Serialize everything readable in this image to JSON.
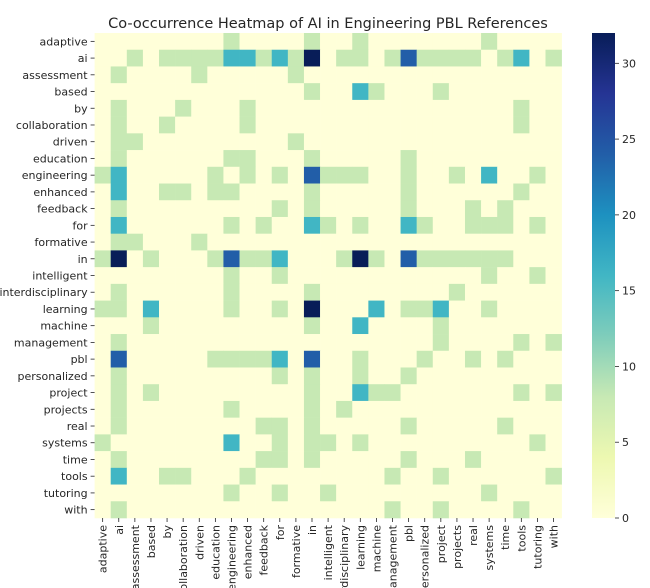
{
  "chart_data": {
    "type": "heatmap",
    "title": "Co-occurrence Heatmap of AI in Engineering PBL References",
    "xlabel": "",
    "ylabel": "",
    "labels": [
      "adaptive",
      "ai",
      "assessment",
      "based",
      "by",
      "collaboration",
      "driven",
      "education",
      "engineering",
      "enhanced",
      "feedback",
      "for",
      "formative",
      "in",
      "intelligent",
      "interdisciplinary",
      "learning",
      "machine",
      "management",
      "pbl",
      "personalized",
      "project",
      "projects",
      "real",
      "systems",
      "time",
      "tools",
      "tutoring",
      "with"
    ],
    "colormap": "YlGnBu",
    "colormap_stops": [
      "#ffffd9",
      "#edf8b1",
      "#c7e9b4",
      "#7fcdbb",
      "#41b6c4",
      "#1d91c0",
      "#225ea8",
      "#253494",
      "#081d58"
    ],
    "vmin": 0,
    "vmax": 32,
    "colorbar_ticks": [
      "0",
      "5",
      "10",
      "15",
      "20",
      "25",
      "30"
    ],
    "colorbar_tick_values": [
      0,
      5,
      10,
      15,
      20,
      25,
      30
    ],
    "cells": {
      "adaptive": {
        "engineering": 8,
        "in": 8,
        "learning": 8,
        "systems": 8
      },
      "ai": {
        "assessment": 8,
        "by": 8,
        "collaboration": 8,
        "driven": 8,
        "education": 8,
        "engineering": 16,
        "enhanced": 16,
        "feedback": 8,
        "for": 16,
        "formative": 8,
        "in": 32,
        "interdisciplinary": 8,
        "learning": 8,
        "management": 8,
        "pbl": 24,
        "personalized": 8,
        "project": 8,
        "projects": 8,
        "real": 8,
        "time": 8,
        "tools": 16,
        "with": 8
      },
      "assessment": {
        "ai": 8,
        "driven": 8,
        "formative": 8
      },
      "based": {
        "in": 8,
        "learning": 16,
        "machine": 8,
        "project": 8
      },
      "by": {
        "ai": 8,
        "collaboration": 8,
        "enhanced": 8,
        "tools": 8
      },
      "collaboration": {
        "ai": 8,
        "by": 8,
        "enhanced": 8,
        "tools": 8
      },
      "driven": {
        "ai": 8,
        "assessment": 8,
        "formative": 8
      },
      "education": {
        "ai": 8,
        "engineering": 8,
        "enhanced": 8,
        "in": 8,
        "pbl": 8
      },
      "engineering": {
        "adaptive": 8,
        "ai": 16,
        "education": 8,
        "enhanced": 8,
        "for": 8,
        "in": 24,
        "intelligent": 8,
        "interdisciplinary": 8,
        "learning": 8,
        "pbl": 8,
        "projects": 8,
        "systems": 16,
        "tutoring": 8
      },
      "enhanced": {
        "ai": 16,
        "by": 8,
        "collaboration": 8,
        "education": 8,
        "engineering": 8,
        "in": 8,
        "pbl": 8,
        "tools": 8
      },
      "feedback": {
        "ai": 8,
        "for": 8,
        "in": 8,
        "pbl": 8,
        "real": 8,
        "time": 8
      },
      "for": {
        "ai": 16,
        "engineering": 8,
        "feedback": 8,
        "in": 16,
        "intelligent": 8,
        "learning": 8,
        "pbl": 16,
        "personalized": 8,
        "real": 8,
        "systems": 8,
        "time": 8,
        "tutoring": 8
      },
      "formative": {
        "ai": 8,
        "assessment": 8,
        "driven": 8
      },
      "in": {
        "adaptive": 8,
        "ai": 32,
        "based": 8,
        "education": 8,
        "engineering": 24,
        "enhanced": 8,
        "feedback": 8,
        "for": 16,
        "interdisciplinary": 8,
        "learning": 32,
        "machine": 8,
        "pbl": 24,
        "personalized": 8,
        "project": 8,
        "projects": 8,
        "real": 8,
        "systems": 8,
        "time": 8
      },
      "intelligent": {
        "engineering": 8,
        "for": 8,
        "systems": 8,
        "tutoring": 8
      },
      "interdisciplinary": {
        "ai": 8,
        "engineering": 8,
        "in": 8,
        "projects": 8
      },
      "learning": {
        "adaptive": 8,
        "ai": 8,
        "based": 16,
        "engineering": 8,
        "for": 8,
        "in": 32,
        "machine": 16,
        "pbl": 8,
        "personalized": 8,
        "project": 16,
        "systems": 8
      },
      "machine": {
        "based": 8,
        "in": 8,
        "learning": 16,
        "project": 8
      },
      "management": {
        "ai": 8,
        "project": 8,
        "tools": 8,
        "with": 8
      },
      "pbl": {
        "ai": 24,
        "education": 8,
        "engineering": 8,
        "enhanced": 8,
        "feedback": 8,
        "for": 16,
        "in": 24,
        "learning": 8,
        "personalized": 8,
        "real": 8,
        "time": 8
      },
      "personalized": {
        "ai": 8,
        "for": 8,
        "in": 8,
        "learning": 8,
        "pbl": 8
      },
      "project": {
        "ai": 8,
        "based": 8,
        "in": 8,
        "learning": 16,
        "machine": 8,
        "management": 8,
        "tools": 8,
        "with": 8
      },
      "projects": {
        "ai": 8,
        "engineering": 8,
        "in": 8,
        "interdisciplinary": 8
      },
      "real": {
        "ai": 8,
        "feedback": 8,
        "for": 8,
        "in": 8,
        "pbl": 8,
        "time": 8
      },
      "systems": {
        "adaptive": 8,
        "engineering": 16,
        "for": 8,
        "in": 8,
        "intelligent": 8,
        "learning": 8,
        "tutoring": 8
      },
      "time": {
        "ai": 8,
        "feedback": 8,
        "for": 8,
        "in": 8,
        "pbl": 8,
        "real": 8
      },
      "tools": {
        "ai": 16,
        "by": 8,
        "collaboration": 8,
        "enhanced": 8,
        "management": 8,
        "project": 8,
        "with": 8
      },
      "tutoring": {
        "engineering": 8,
        "for": 8,
        "intelligent": 8,
        "systems": 8
      },
      "with": {
        "ai": 8,
        "management": 8,
        "project": 8,
        "tools": 8
      }
    }
  }
}
